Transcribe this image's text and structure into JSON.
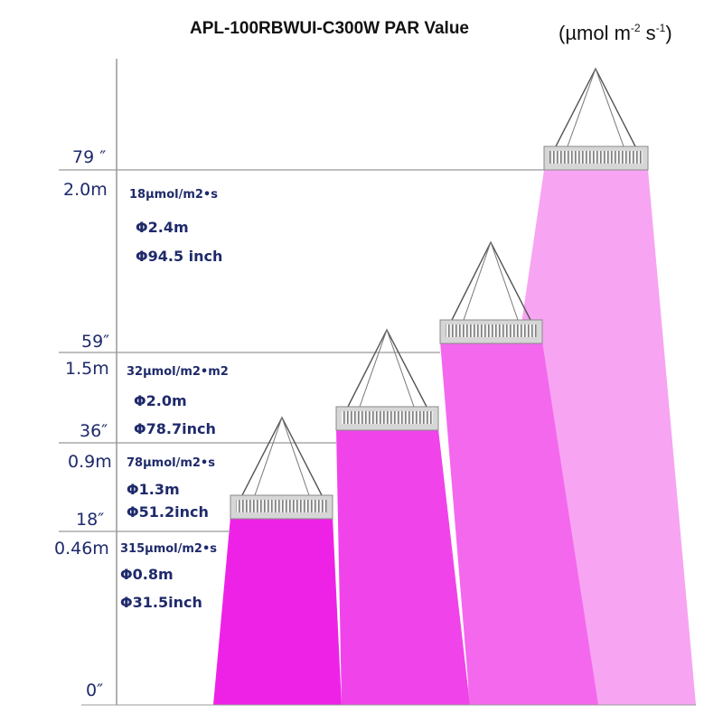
{
  "header": {
    "title": "APL-100RBWUI-C300W  PAR Value",
    "unit_prefix": "(µmol m",
    "unit_exp1": "-2",
    "unit_mid": " s",
    "unit_exp2": "-1",
    "unit_suffix": ")"
  },
  "colors": {
    "light_1": "#ee22e6",
    "light_2": "#f044ea",
    "light_3": "#f468ee",
    "light_4": "#f7a4f2",
    "fixture": "#d6d6d6",
    "text": "#1f2a6b",
    "line": "#999999"
  },
  "axis": {
    "zero": "0″"
  },
  "levels": [
    {
      "inch": "18″",
      "meter": "0.46m",
      "par": "315µmol/m2•s",
      "dia_m": "Φ0.8m",
      "dia_in": "Φ31.5inch"
    },
    {
      "inch": "36″",
      "meter": "0.9m",
      "par": "78µmol/m2•s",
      "dia_m": "Φ1.3m",
      "dia_in": "Φ51.2inch"
    },
    {
      "inch": "59″",
      "meter": "1.5m",
      "par": "32µmol/m2•m2",
      "dia_m": "Φ2.0m",
      "dia_in": "Φ78.7inch"
    },
    {
      "inch": "79 ″",
      "meter": "2.0m",
      "par": "18µmol/m2•s",
      "dia_m": "Φ2.4m",
      "dia_in": "Φ94.5 inch"
    }
  ]
}
